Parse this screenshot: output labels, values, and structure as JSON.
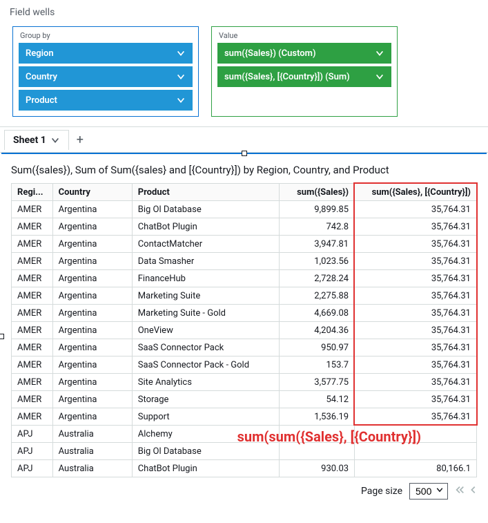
{
  "header": {
    "label": "Field wells"
  },
  "wells": {
    "groupby": {
      "label": "Group by",
      "border_color": "#0972d3",
      "pill_color": "#2196d6",
      "items": [
        "Region",
        "Country",
        "Product"
      ]
    },
    "value": {
      "label": "Value",
      "border_color": "#2ea043",
      "pill_color": "#2ea043",
      "items": [
        "sum({Sales}) (Custom)",
        "sum({Sales}, [{Country}]) (Sum)"
      ]
    }
  },
  "sheet": {
    "name": "Sheet 1"
  },
  "vis": {
    "title": "Sum({sales}), Sum of Sum({sales} and [{Country}]) by Region, Country, and Product",
    "columns": [
      "Regi...",
      "Country",
      "Product",
      "sum({Sales})",
      "sum({Sales}, [{Country}])"
    ],
    "rows": [
      [
        "AMER",
        "Argentina",
        "Big Ol Database",
        "9,899.85",
        "35,764.31"
      ],
      [
        "AMER",
        "Argentina",
        "ChatBot Plugin",
        "742.8",
        "35,764.31"
      ],
      [
        "AMER",
        "Argentina",
        "ContactMatcher",
        "3,947.81",
        "35,764.31"
      ],
      [
        "AMER",
        "Argentina",
        "Data Smasher",
        "1,023.56",
        "35,764.31"
      ],
      [
        "AMER",
        "Argentina",
        "FinanceHub",
        "2,728.24",
        "35,764.31"
      ],
      [
        "AMER",
        "Argentina",
        "Marketing Suite",
        "2,275.88",
        "35,764.31"
      ],
      [
        "AMER",
        "Argentina",
        "Marketing Suite - Gold",
        "4,669.08",
        "35,764.31"
      ],
      [
        "AMER",
        "Argentina",
        "OneView",
        "4,204.36",
        "35,764.31"
      ],
      [
        "AMER",
        "Argentina",
        "SaaS Connector Pack",
        "950.97",
        "35,764.31"
      ],
      [
        "AMER",
        "Argentina",
        "SaaS Connector Pack - Gold",
        "153.7",
        "35,764.31"
      ],
      [
        "AMER",
        "Argentina",
        "Site Analytics",
        "3,577.75",
        "35,764.31"
      ],
      [
        "AMER",
        "Argentina",
        "Storage",
        "54.12",
        "35,764.31"
      ],
      [
        "AMER",
        "Argentina",
        "Support",
        "1,536.19",
        "35,764.31"
      ],
      [
        "APJ",
        "Australia",
        "Alchemy",
        "",
        ""
      ],
      [
        "APJ",
        "Australia",
        "Big Ol Database",
        "",
        ""
      ],
      [
        "APJ",
        "Australia",
        "ChatBot Plugin",
        "930.03",
        "80,166.1"
      ]
    ],
    "highlight": {
      "color": "#e03030",
      "annotation_text": "sum(sum({Sales}, [{Country}])",
      "first_row": 0,
      "last_row": 12
    }
  },
  "pager": {
    "label": "Page size",
    "value": "500"
  }
}
